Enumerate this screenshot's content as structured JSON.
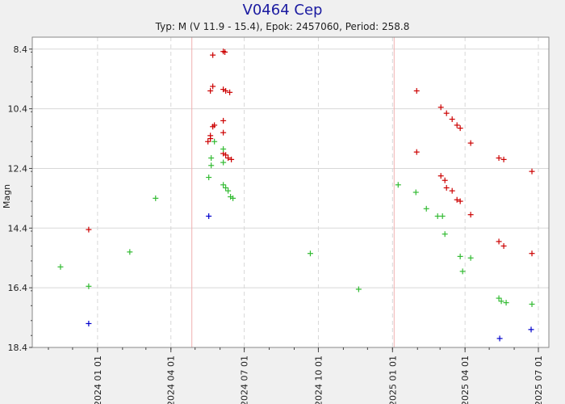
{
  "chart_data": {
    "type": "scatter",
    "title": "V0464 Cep",
    "subtitle": "Typ: M (V 11.9 - 15.4), Epok: 2457060, Period: 258.8",
    "ylabel": "Magn",
    "xlabel": "",
    "y_inverted": true,
    "ylim": [
      18.4,
      8.0
    ],
    "xlim": [
      "2023-10-12",
      "2025-07-14"
    ],
    "yticks": [
      8.4,
      10.4,
      12.4,
      14.4,
      16.4,
      18.4
    ],
    "xticks": [
      "2024 01 01",
      "2024 04 01",
      "2024 07 01",
      "2024 10 01",
      "2025 01 01",
      "2025 04 01",
      "2025 07 01"
    ],
    "max_lines": [
      "2024-04-27",
      "2025-01-03"
    ],
    "grid": true,
    "background_color": "#ffffff",
    "grid_color": "#d8d8d8",
    "max_line_color": "#f0b0b0",
    "series": [
      {
        "color": "#cc0000",
        "points": [
          [
            "2023-12-21",
            14.45
          ],
          [
            "2024-05-23",
            8.6
          ],
          [
            "2024-06-07",
            8.5
          ],
          [
            "2024-06-05",
            8.48
          ],
          [
            "2024-05-20",
            9.8
          ],
          [
            "2024-05-23",
            9.65
          ],
          [
            "2024-06-05",
            9.75
          ],
          [
            "2024-06-08",
            9.8
          ],
          [
            "2024-06-13",
            9.85
          ],
          [
            "2024-05-23",
            11.0
          ],
          [
            "2024-05-25",
            10.95
          ],
          [
            "2024-06-05",
            10.8
          ],
          [
            "2024-06-05",
            11.2
          ],
          [
            "2024-05-17",
            11.5
          ],
          [
            "2024-05-20",
            11.4
          ],
          [
            "2024-05-20",
            11.3
          ],
          [
            "2024-06-05",
            11.9
          ],
          [
            "2024-06-08",
            11.95
          ],
          [
            "2024-06-11",
            12.05
          ],
          [
            "2024-06-15",
            12.1
          ],
          [
            "2025-01-31",
            9.8
          ],
          [
            "2025-01-31",
            11.85
          ],
          [
            "2025-03-02",
            10.35
          ],
          [
            "2025-03-09",
            10.55
          ],
          [
            "2025-03-16",
            10.75
          ],
          [
            "2025-03-22",
            10.95
          ],
          [
            "2025-03-26",
            11.05
          ],
          [
            "2025-04-08",
            11.55
          ],
          [
            "2025-03-02",
            12.65
          ],
          [
            "2025-03-07",
            12.8
          ],
          [
            "2025-03-09",
            13.05
          ],
          [
            "2025-03-16",
            13.15
          ],
          [
            "2025-03-22",
            13.45
          ],
          [
            "2025-03-26",
            13.5
          ],
          [
            "2025-04-08",
            13.95
          ],
          [
            "2025-05-13",
            12.05
          ],
          [
            "2025-05-19",
            12.1
          ],
          [
            "2025-06-23",
            12.5
          ],
          [
            "2025-05-13",
            14.85
          ],
          [
            "2025-05-19",
            15.0
          ],
          [
            "2025-06-23",
            15.25
          ]
        ]
      },
      {
        "color": "#33bb33",
        "points": [
          [
            "2023-11-16",
            15.7
          ],
          [
            "2023-12-21",
            16.35
          ],
          [
            "2024-02-10",
            15.2
          ],
          [
            "2024-03-13",
            13.4
          ],
          [
            "2024-05-18",
            12.7
          ],
          [
            "2024-05-21",
            12.05
          ],
          [
            "2024-05-21",
            12.3
          ],
          [
            "2024-05-25",
            11.5
          ],
          [
            "2024-06-05",
            11.75
          ],
          [
            "2024-06-05",
            12.2
          ],
          [
            "2024-06-05",
            12.95
          ],
          [
            "2024-06-08",
            13.05
          ],
          [
            "2024-06-11",
            13.15
          ],
          [
            "2024-06-14",
            13.35
          ],
          [
            "2024-06-17",
            13.4
          ],
          [
            "2024-09-21",
            15.25
          ],
          [
            "2024-11-20",
            16.45
          ],
          [
            "2025-01-08",
            12.95
          ],
          [
            "2025-01-30",
            13.2
          ],
          [
            "2025-02-12",
            13.75
          ],
          [
            "2025-02-26",
            14.0
          ],
          [
            "2025-03-04",
            14.0
          ],
          [
            "2025-03-07",
            14.6
          ],
          [
            "2025-03-26",
            15.35
          ],
          [
            "2025-03-29",
            15.85
          ],
          [
            "2025-04-08",
            15.4
          ],
          [
            "2025-05-13",
            16.75
          ],
          [
            "2025-05-16",
            16.85
          ],
          [
            "2025-05-22",
            16.9
          ],
          [
            "2025-06-23",
            16.95
          ]
        ]
      },
      {
        "color": "#0000cc",
        "points": [
          [
            "2023-12-21",
            17.6
          ],
          [
            "2024-05-18",
            14.0
          ],
          [
            "2025-05-14",
            18.1
          ],
          [
            "2025-06-22",
            17.8
          ]
        ]
      }
    ]
  }
}
